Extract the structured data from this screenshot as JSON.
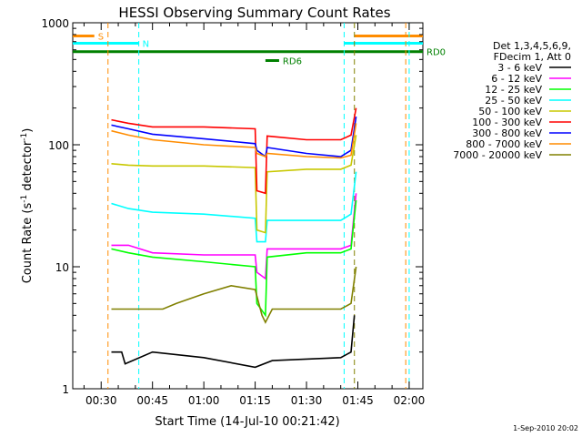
{
  "chart_data": {
    "type": "line",
    "title": "HESSI Observing Summary Count Rates",
    "xlabel": "Start Time (14-Jul-10 00:21:42)",
    "ylabel_main": "Count Rate (s",
    "ylabel_sup1": "-1",
    "ylabel_mid": " detector",
    "ylabel_sup2": "-1",
    "ylabel_end": ")",
    "yscale": "log",
    "ylim": [
      1,
      1000
    ],
    "xlim_min": [
      21.7,
      124
    ],
    "x_ticks": [
      {
        "t": 30,
        "label": "00:30"
      },
      {
        "t": 45,
        "label": "00:45"
      },
      {
        "t": 60,
        "label": "01:00"
      },
      {
        "t": 75,
        "label": "01:15"
      },
      {
        "t": 90,
        "label": "01:30"
      },
      {
        "t": 105,
        "label": "01:45"
      },
      {
        "t": 120,
        "label": "02:00"
      }
    ],
    "y_ticks": [
      {
        "v": 1,
        "label": "1"
      },
      {
        "v": 10,
        "label": "10"
      },
      {
        "v": 100,
        "label": "100"
      },
      {
        "v": 1000,
        "label": "1000"
      }
    ],
    "legend": {
      "header": [
        "Det 1,3,4,5,6,9,",
        "FDecim 1, Att 0"
      ],
      "position": "right"
    },
    "series": [
      {
        "name": "3 - 6 keV",
        "color": "#000000",
        "points": [
          [
            33,
            2
          ],
          [
            36,
            2
          ],
          [
            37,
            1.6
          ],
          [
            45,
            2
          ],
          [
            60,
            1.8
          ],
          [
            75,
            1.5
          ],
          [
            80,
            1.7
          ],
          [
            100,
            1.8
          ],
          [
            103,
            2
          ],
          [
            104,
            4
          ]
        ]
      },
      {
        "name": "6 - 12 keV",
        "color": "#ff00ff",
        "points": [
          [
            33,
            15
          ],
          [
            38,
            15
          ],
          [
            45,
            13
          ],
          [
            60,
            12.5
          ],
          [
            75,
            12.5
          ],
          [
            75.5,
            9
          ],
          [
            78,
            8
          ],
          [
            78.5,
            14
          ],
          [
            90,
            14
          ],
          [
            100,
            14
          ],
          [
            103,
            15
          ],
          [
            104.5,
            40
          ]
        ]
      },
      {
        "name": "12 - 25 keV",
        "color": "#00ff00",
        "points": [
          [
            33,
            14
          ],
          [
            38,
            13
          ],
          [
            45,
            12
          ],
          [
            60,
            11
          ],
          [
            75,
            10
          ],
          [
            75.5,
            5
          ],
          [
            78,
            4
          ],
          [
            78.5,
            12
          ],
          [
            90,
            13
          ],
          [
            100,
            13
          ],
          [
            103,
            14
          ],
          [
            104.5,
            35
          ]
        ]
      },
      {
        "name": "25 - 50 keV",
        "color": "#00ffff",
        "points": [
          [
            33,
            33
          ],
          [
            38,
            30
          ],
          [
            45,
            28
          ],
          [
            60,
            27
          ],
          [
            75,
            25
          ],
          [
            75.5,
            16
          ],
          [
            78,
            16
          ],
          [
            78.5,
            24
          ],
          [
            90,
            24
          ],
          [
            100,
            24
          ],
          [
            103,
            27
          ],
          [
            104.5,
            60
          ]
        ]
      },
      {
        "name": "50 - 100 keV",
        "color": "#c8c800",
        "points": [
          [
            33,
            70
          ],
          [
            38,
            68
          ],
          [
            45,
            67
          ],
          [
            60,
            67
          ],
          [
            75,
            65
          ],
          [
            75.5,
            20
          ],
          [
            78,
            19
          ],
          [
            78.5,
            60
          ],
          [
            90,
            63
          ],
          [
            100,
            63
          ],
          [
            103,
            68
          ],
          [
            104.5,
            120
          ]
        ]
      },
      {
        "name": "100 - 300 keV",
        "color": "#ff0000",
        "points": [
          [
            33,
            160
          ],
          [
            38,
            150
          ],
          [
            45,
            140
          ],
          [
            60,
            140
          ],
          [
            75,
            135
          ],
          [
            75.5,
            42
          ],
          [
            78,
            40
          ],
          [
            78.5,
            118
          ],
          [
            90,
            110
          ],
          [
            100,
            110
          ],
          [
            103,
            120
          ],
          [
            104.5,
            200
          ]
        ]
      },
      {
        "name": "300 - 800 keV",
        "color": "#0000ff",
        "points": [
          [
            33,
            145
          ],
          [
            38,
            135
          ],
          [
            45,
            122
          ],
          [
            60,
            112
          ],
          [
            75,
            102
          ],
          [
            75.5,
            90
          ],
          [
            78,
            80
          ],
          [
            78.5,
            95
          ],
          [
            90,
            85
          ],
          [
            100,
            80
          ],
          [
            103,
            90
          ],
          [
            104.5,
            170
          ]
        ]
      },
      {
        "name": "800 - 7000 keV",
        "color": "#ff8c00",
        "points": [
          [
            33,
            130
          ],
          [
            38,
            120
          ],
          [
            45,
            110
          ],
          [
            60,
            100
          ],
          [
            75,
            95
          ],
          [
            75.5,
            85
          ],
          [
            78,
            80
          ],
          [
            78.5,
            85
          ],
          [
            90,
            80
          ],
          [
            100,
            78
          ],
          [
            103,
            82
          ],
          [
            104.5,
            150
          ]
        ]
      },
      {
        "name": "7000 - 20000 keV",
        "color": "#808000",
        "points": [
          [
            33,
            4.5
          ],
          [
            40,
            4.5
          ],
          [
            48,
            4.5
          ],
          [
            52,
            5
          ],
          [
            60,
            6
          ],
          [
            68,
            7
          ],
          [
            75,
            6.5
          ],
          [
            77,
            4
          ],
          [
            78,
            3.5
          ],
          [
            80,
            4.5
          ],
          [
            90,
            4.5
          ],
          [
            100,
            4.5
          ],
          [
            103,
            5
          ],
          [
            104.5,
            10
          ]
        ]
      }
    ],
    "flag_bars": [
      {
        "label": "S",
        "color": "#ff8c00",
        "t_start": 21.7,
        "t_end": 28,
        "value": 780
      },
      {
        "label": "N",
        "color": "#00ffff",
        "t_start": 21.7,
        "t_end": 41,
        "value": 680
      },
      {
        "label": "RD0",
        "color": "#008000",
        "t_start": 21.7,
        "t_end": 124,
        "value": 580
      },
      {
        "label": "RD6",
        "color": "#008000",
        "t_start": 78,
        "t_end": 82,
        "value": 490
      },
      {
        "label": "",
        "color": "#00ffff",
        "t_start": 101,
        "t_end": 124,
        "value": 680
      },
      {
        "label": "",
        "color": "#ff8c00",
        "t_start": 104,
        "t_end": 124,
        "value": 780
      }
    ],
    "vertical_lines": [
      {
        "t": 32,
        "color": "#ff8c00"
      },
      {
        "t": 41,
        "color": "#00ffff"
      },
      {
        "t": 101,
        "color": "#00ffff"
      },
      {
        "t": 104,
        "color": "#808000"
      },
      {
        "t": 119,
        "color": "#ff8c00"
      },
      {
        "t": 120,
        "color": "#00ffff"
      }
    ],
    "timestamp": "1-Sep-2010 20:02"
  }
}
